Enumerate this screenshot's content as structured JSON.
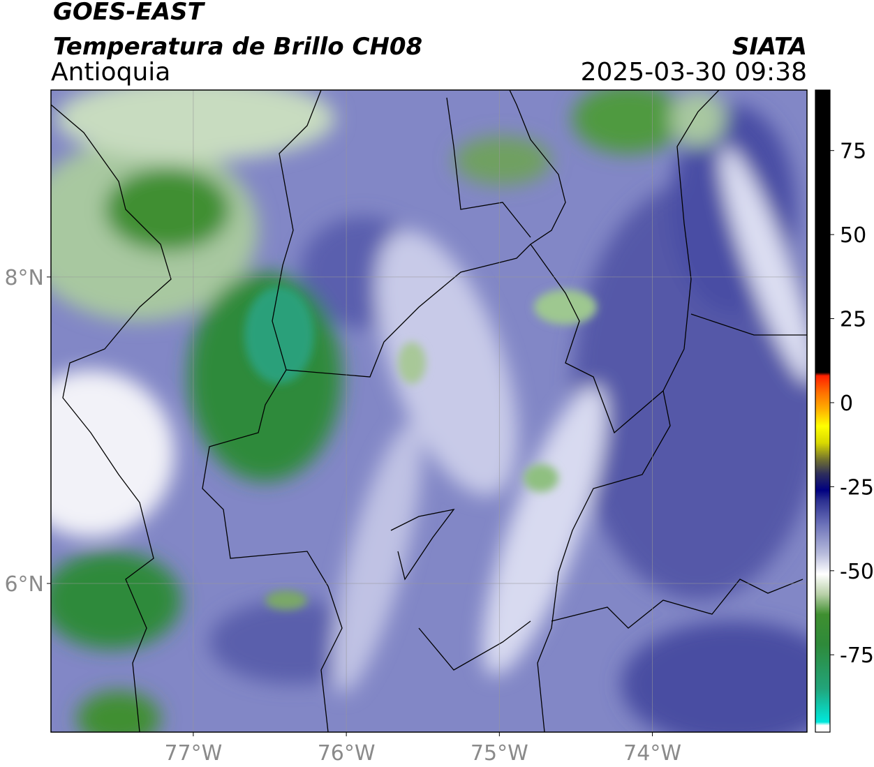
{
  "header": {
    "title": "GOES-EAST",
    "subtitle": "Temperatura de Brillo CH08",
    "region": "Antioquia",
    "source": "SIATA",
    "datetime": "2025-03-30 09:38"
  },
  "map": {
    "lonlim": [
      -77.93,
      -72.99
    ],
    "latlim": [
      5.03,
      9.22
    ],
    "grid": true,
    "lonticks": [
      {
        "value": -77,
        "label": "77°W"
      },
      {
        "value": -76,
        "label": "76°W"
      },
      {
        "value": -75,
        "label": "75°W"
      },
      {
        "value": -74,
        "label": "74°W"
      }
    ],
    "latticks": [
      {
        "value": 6,
        "label": "6°N"
      },
      {
        "value": 8,
        "label": "8°N"
      }
    ]
  },
  "colorbar": {
    "lim": [
      -98,
      93
    ],
    "ticks": [
      -75,
      -50,
      -25,
      0,
      25,
      50,
      75
    ],
    "stops": [
      {
        "value": -98,
        "color": "#ffffff"
      },
      {
        "value": -96,
        "color": "#ffffff"
      },
      {
        "value": -95,
        "color": "#00e8dc"
      },
      {
        "value": -85,
        "color": "#22a47a"
      },
      {
        "value": -72,
        "color": "#2e8a3a"
      },
      {
        "value": -63,
        "color": "#3f8f30"
      },
      {
        "value": -57,
        "color": "#b8d0a8"
      },
      {
        "value": -51,
        "color": "#ffffff"
      },
      {
        "value": -45,
        "color": "#b8bcdc"
      },
      {
        "value": -36,
        "color": "#6a70b8"
      },
      {
        "value": -29,
        "color": "#2a2e90"
      },
      {
        "value": -26,
        "color": "#000080"
      },
      {
        "value": -21,
        "color": "#30305a"
      },
      {
        "value": -17,
        "color": "#707030"
      },
      {
        "value": -12,
        "color": "#d8d800"
      },
      {
        "value": -7,
        "color": "#ffff00"
      },
      {
        "value": -2,
        "color": "#ffb000"
      },
      {
        "value": 3,
        "color": "#ff7000"
      },
      {
        "value": 8,
        "color": "#ff2000"
      },
      {
        "value": 9,
        "color": "#000000"
      },
      {
        "value": 93,
        "color": "#000000"
      }
    ]
  }
}
